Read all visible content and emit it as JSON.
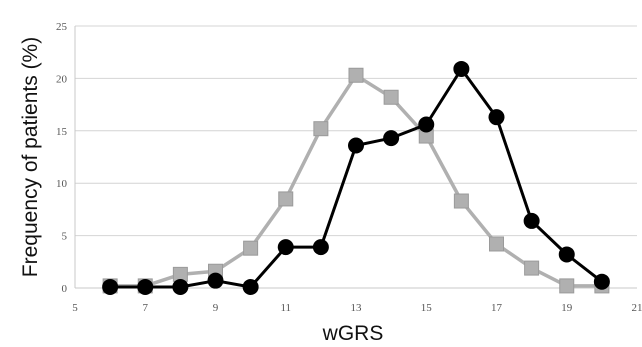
{
  "chart_data": {
    "type": "line",
    "title": "",
    "xlabel": "wGRS",
    "ylabel": "Frequency of patients (%)",
    "xlim": [
      5,
      21
    ],
    "ylim": [
      0,
      25
    ],
    "x_ticks": [
      5,
      7,
      9,
      11,
      13,
      15,
      17,
      19,
      21
    ],
    "y_ticks": [
      0,
      5,
      10,
      15,
      20,
      25
    ],
    "grid": true,
    "legend": "none",
    "series": [
      {
        "marker": "square",
        "color": "#b0b0b0",
        "x": [
          6,
          7,
          8,
          9,
          10,
          11,
          12,
          13,
          14,
          15,
          16,
          17,
          18,
          19,
          20
        ],
        "y": [
          0.2,
          0.2,
          1.3,
          1.6,
          3.8,
          8.5,
          15.2,
          20.3,
          18.2,
          14.5,
          8.3,
          4.2,
          1.9,
          0.2,
          0.2
        ]
      },
      {
        "marker": "circle",
        "color": "#000000",
        "x": [
          6,
          7,
          8,
          9,
          10,
          11,
          12,
          13,
          14,
          15,
          16,
          17,
          18,
          19,
          20
        ],
        "y": [
          0.1,
          0.1,
          0.1,
          0.7,
          0.1,
          3.9,
          3.9,
          13.6,
          14.3,
          15.6,
          20.9,
          16.3,
          6.4,
          3.2,
          0.6
        ]
      }
    ]
  }
}
